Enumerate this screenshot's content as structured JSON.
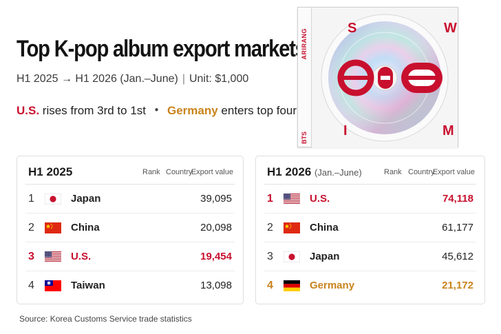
{
  "headline": "Top K-pop album export markets",
  "subline": {
    "period": "H1 2025 → H1 2026 (Jan.–June)",
    "separator": "|",
    "unit": "Unit: $1,000"
  },
  "keyline": {
    "us_name": "U.S.",
    "us_text": " rises from 3rd to 1st",
    "dot": "・",
    "germany_name": "Germany",
    "germany_text": " enters top four"
  },
  "album": {
    "spine_top": "ARIRANG",
    "spine_bottom": "BTS",
    "letters": [
      "S",
      "W",
      "I",
      "M"
    ]
  },
  "chart_data": [
    {
      "type": "table",
      "title": "H1 2025",
      "columns": [
        "Rank",
        "Country",
        "Export value"
      ],
      "rows": [
        {
          "rank": "1",
          "country": "Japan",
          "value": "39,095",
          "flag": "japan"
        },
        {
          "rank": "2",
          "country": "China",
          "value": "20,098",
          "flag": "china"
        },
        {
          "rank": "3",
          "country": "U.S.",
          "value": "19,454",
          "flag": "usa"
        },
        {
          "rank": "4",
          "country": "Taiwan",
          "value": "13,098",
          "flag": "taiwan"
        }
      ]
    },
    {
      "type": "table",
      "title": "H1 2026",
      "title_note": "(Jan.–June)",
      "columns": [
        "Rank",
        "Country",
        "Export value"
      ],
      "rows": [
        {
          "rank": "1",
          "country": "U.S.",
          "value": "74,118",
          "flag": "usa"
        },
        {
          "rank": "2",
          "country": "China",
          "value": "61,177",
          "flag": "china"
        },
        {
          "rank": "3",
          "country": "Japan",
          "value": "45,612",
          "flag": "japan"
        },
        {
          "rank": "4",
          "country": "Germany",
          "value": "21,172",
          "flag": "germany"
        }
      ]
    }
  ],
  "colors": {
    "highlight_red": "#c8102e",
    "highlight_gold": "#c9831c"
  },
  "source": "Source: Korea Customs Service trade statistics"
}
